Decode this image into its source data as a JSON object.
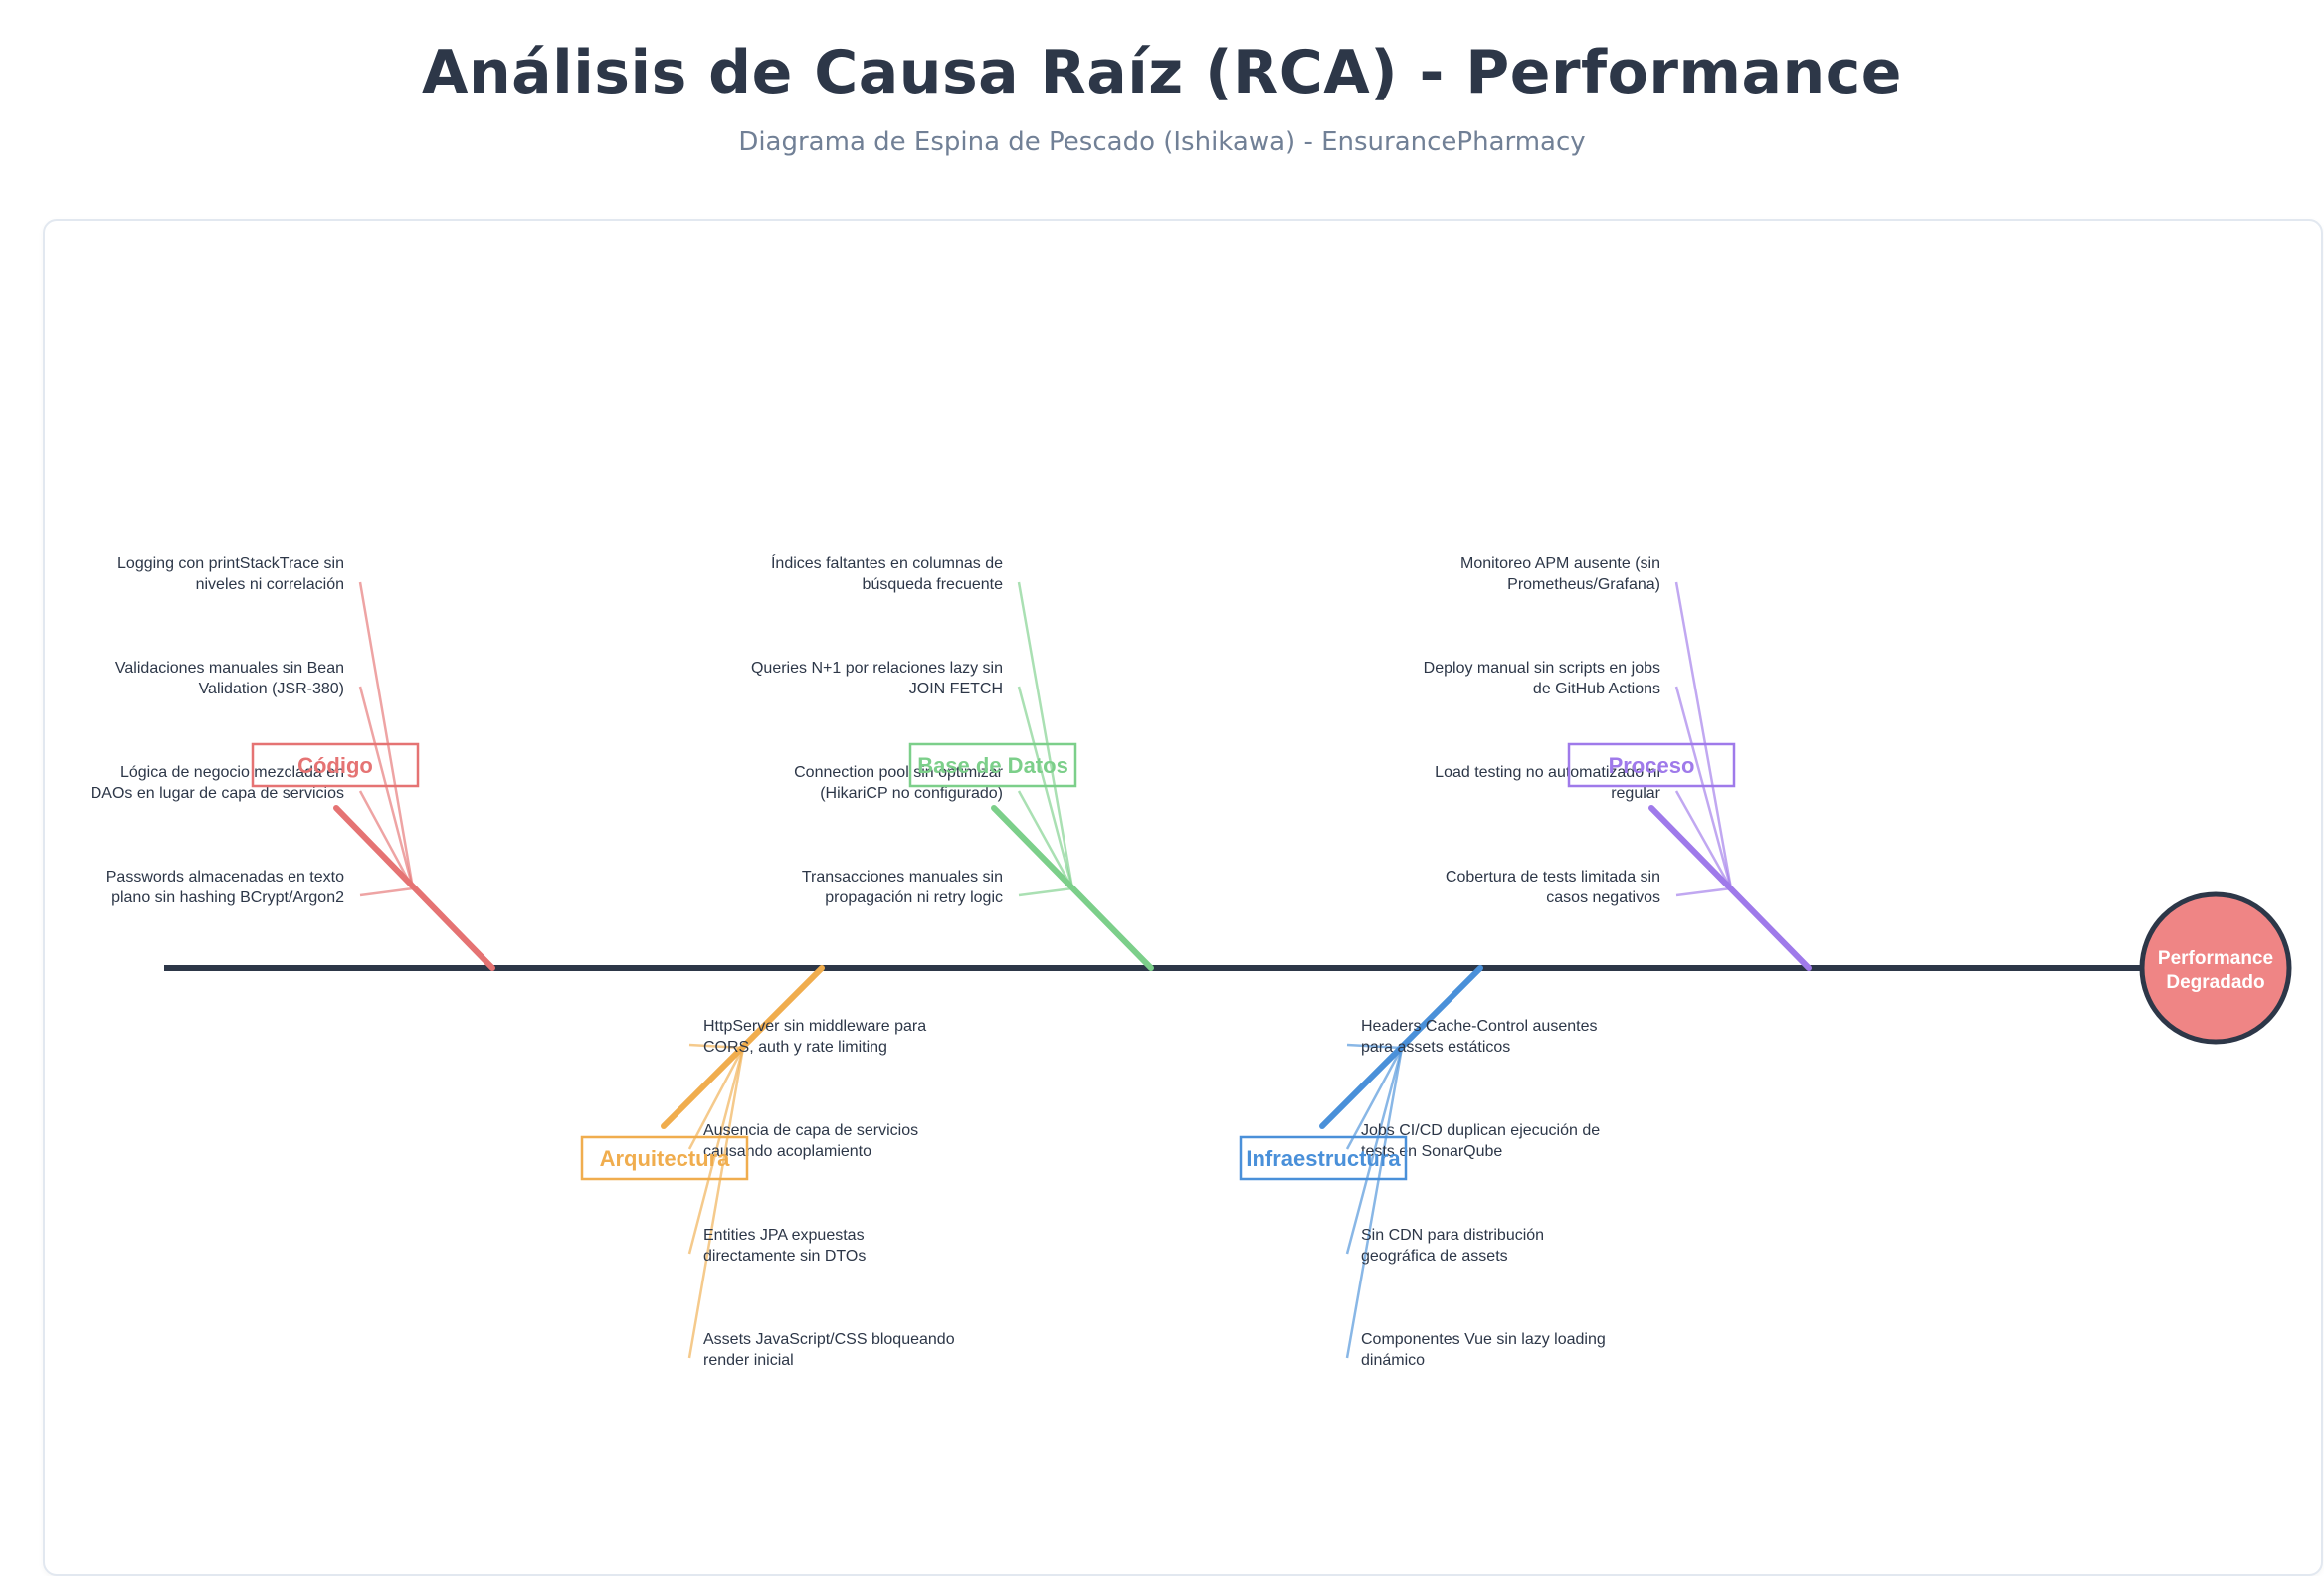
{
  "header": {
    "title": "Análisis de Causa Raíz (RCA) - Performance",
    "subtitle": "Diagrama de Espina de Pescado (Ishikawa) - EnsurancePharmacy"
  },
  "effect": {
    "lines": [
      "Performance",
      "Degradado"
    ],
    "color": "#ef8585"
  },
  "spine_color": "#2d3748",
  "categories": [
    {
      "id": "codigo",
      "label": "Código",
      "color": "#e57373",
      "side": "top",
      "causes": [
        [
          "Logging con printStackTrace sin",
          "niveles ni correlación"
        ],
        [
          "Validaciones manuales sin Bean",
          "Validation (JSR-380)"
        ],
        [
          "Lógica de negocio mezclada en",
          "DAOs en lugar de capa de servicios"
        ],
        [
          "Passwords almacenadas en texto",
          "plano sin hashing BCrypt/Argon2"
        ]
      ]
    },
    {
      "id": "base-de-datos",
      "label": "Base de Datos",
      "color": "#7ccf8a",
      "side": "top",
      "causes": [
        [
          "Índices faltantes en columnas de",
          "búsqueda frecuente"
        ],
        [
          "Queries N+1 por relaciones lazy sin",
          "JOIN FETCH"
        ],
        [
          "Connection pool sin optimizar",
          "(HikariCP no configurado)"
        ],
        [
          "Transacciones manuales sin",
          "propagación ni retry logic"
        ]
      ]
    },
    {
      "id": "proceso",
      "label": "Proceso",
      "color": "#9f7aea",
      "side": "top",
      "causes": [
        [
          "Monitoreo APM ausente (sin",
          "Prometheus/Grafana)"
        ],
        [
          "Deploy manual sin scripts en jobs",
          "de GitHub Actions"
        ],
        [
          "Load testing no automatizado ni",
          "regular"
        ],
        [
          "Cobertura de tests limitada sin",
          "casos negativos"
        ]
      ]
    },
    {
      "id": "arquitectura",
      "label": "Arquitectura",
      "color": "#f0ad4e",
      "side": "bottom",
      "causes": [
        [
          "HttpServer sin middleware para",
          "CORS, auth y rate limiting"
        ],
        [
          "Ausencia de capa de servicios",
          "causando acoplamiento"
        ],
        [
          "Entities JPA expuestas",
          "directamente sin DTOs"
        ],
        [
          "Assets JavaScript/CSS bloqueando",
          "render inicial"
        ]
      ]
    },
    {
      "id": "infraestructura",
      "label": "Infraestructura",
      "color": "#4a90d9",
      "side": "bottom",
      "causes": [
        [
          "Headers Cache-Control ausentes",
          "para assets estáticos"
        ],
        [
          "Jobs CI/CD duplican ejecución de",
          "tests en SonarQube"
        ],
        [
          "Sin CDN para distribución",
          "geográfica de assets"
        ],
        [
          "Componentes Vue sin lazy loading",
          "dinámico"
        ]
      ]
    }
  ]
}
